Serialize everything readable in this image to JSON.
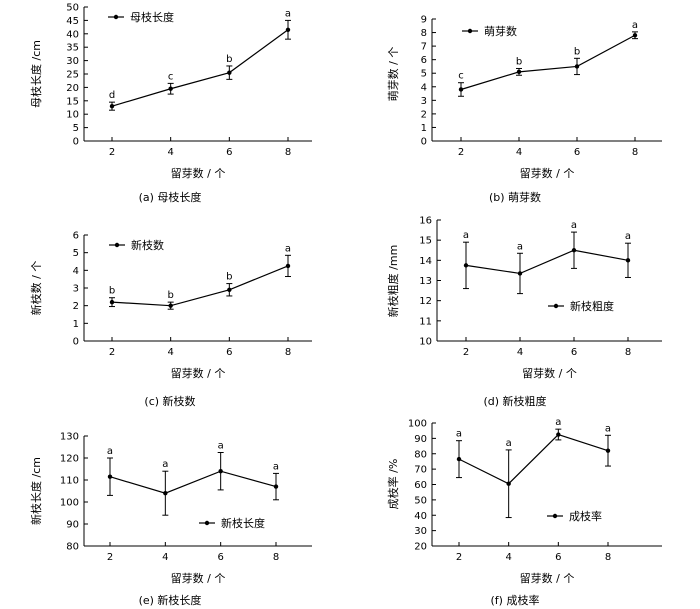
{
  "chart_data": [
    {
      "type": "line",
      "caption": "(a)  母枝长度",
      "categories": [
        "2",
        "4",
        "6",
        "8"
      ],
      "xlabel": "留芽数 / 个",
      "ylabel": "母枝长度 /cm",
      "ylim": [
        0,
        50
      ],
      "yticks": [
        "0",
        "5",
        "10",
        "15",
        "20",
        "25",
        "30",
        "35",
        "40",
        "45",
        "50"
      ],
      "legend_position": "top-left",
      "series": [
        {
          "name": "母枝长度",
          "values": [
            13,
            19.5,
            25.5,
            41.5
          ],
          "errors": [
            1.5,
            2,
            2.5,
            3.5
          ],
          "labels": [
            "d",
            "c",
            "b",
            "a"
          ]
        }
      ]
    },
    {
      "type": "line",
      "caption": "(b)  萌芽数",
      "categories": [
        "2",
        "4",
        "6",
        "8"
      ],
      "xlabel": "留芽数 / 个",
      "ylabel": "萌芽数 / 个",
      "ylim": [
        0,
        9
      ],
      "yticks": [
        "0",
        "1",
        "2",
        "3",
        "4",
        "5",
        "6",
        "7",
        "8",
        "9"
      ],
      "legend_position": "top-left",
      "series": [
        {
          "name": "萌芽数",
          "values": [
            3.8,
            5.1,
            5.5,
            7.8
          ],
          "errors": [
            0.5,
            0.25,
            0.6,
            0.25
          ],
          "labels": [
            "c",
            "b",
            "b",
            "a"
          ]
        }
      ]
    },
    {
      "type": "line",
      "caption": "(c)  新枝数",
      "categories": [
        "2",
        "4",
        "6",
        "8"
      ],
      "xlabel": "留芽数 / 个",
      "ylabel": "新枝数 / 个",
      "ylim": [
        0,
        6
      ],
      "yticks": [
        "0",
        "1",
        "2",
        "3",
        "4",
        "5",
        "6"
      ],
      "legend_position": "top-left",
      "series": [
        {
          "name": "新枝数",
          "values": [
            2.2,
            2.0,
            2.9,
            4.25
          ],
          "errors": [
            0.25,
            0.2,
            0.35,
            0.6
          ],
          "labels": [
            "b",
            "b",
            "b",
            "a"
          ]
        }
      ]
    },
    {
      "type": "line",
      "caption": "(d)  新枝粗度",
      "categories": [
        "2",
        "4",
        "6",
        "8"
      ],
      "xlabel": "留芽数 / 个",
      "ylabel": "新枝粗度 /mm",
      "ylim": [
        10,
        16
      ],
      "yticks": [
        "10",
        "11",
        "12",
        "13",
        "14",
        "15",
        "16"
      ],
      "legend_position": "center-right",
      "series": [
        {
          "name": "新枝粗度",
          "values": [
            13.75,
            13.35,
            14.5,
            14.0
          ],
          "errors": [
            1.15,
            1.0,
            0.9,
            0.85
          ],
          "labels": [
            "a",
            "a",
            "a",
            "a"
          ]
        }
      ]
    },
    {
      "type": "line",
      "caption": "(e)  新枝长度",
      "categories": [
        "2",
        "4",
        "6",
        "8"
      ],
      "xlabel": "留芽数 / 个",
      "ylabel": "新枝长度 /cm",
      "ylim": [
        80,
        130
      ],
      "yticks": [
        "80",
        "90",
        "100",
        "110",
        "120",
        "130"
      ],
      "legend_position": "center-right",
      "series": [
        {
          "name": "新枝长度",
          "values": [
            111.5,
            104,
            114,
            107
          ],
          "errors": [
            8.5,
            10,
            8.5,
            6
          ],
          "labels": [
            "a",
            "a",
            "a",
            "a"
          ]
        }
      ]
    },
    {
      "type": "line",
      "caption": "(f)  成枝率",
      "categories": [
        "2",
        "4",
        "6",
        "8"
      ],
      "xlabel": "留芽数 / 个",
      "ylabel": "成枝率 /%",
      "ylim": [
        20,
        100
      ],
      "yticks": [
        "20",
        "30",
        "40",
        "50",
        "60",
        "70",
        "80",
        "90",
        "100"
      ],
      "legend_position": "center-right",
      "series": [
        {
          "name": "成枝率",
          "values": [
            76.5,
            60.5,
            92.5,
            82
          ],
          "errors": [
            12,
            22,
            3.5,
            10
          ],
          "labels": [
            "a",
            "a",
            "a",
            "a"
          ]
        }
      ]
    }
  ]
}
